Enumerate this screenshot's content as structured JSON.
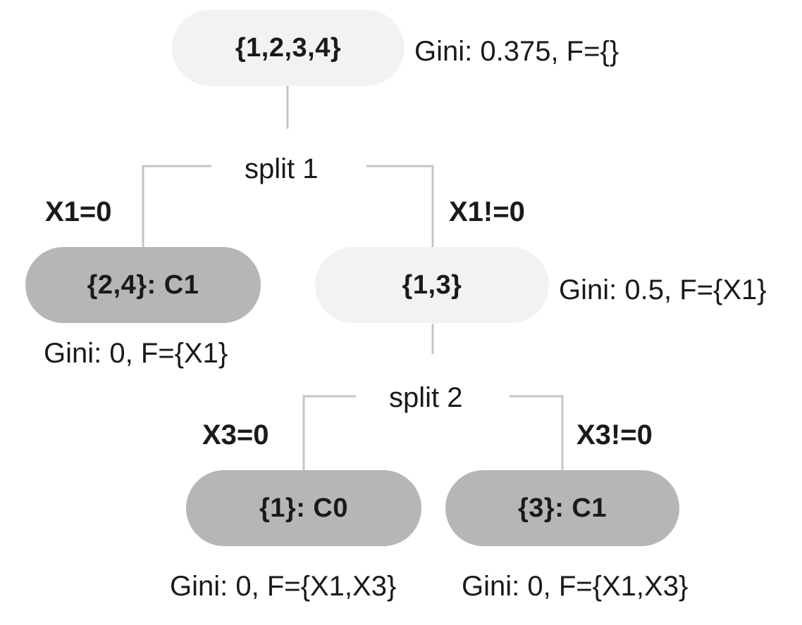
{
  "tree": {
    "root": {
      "label": "{1,2,3,4}",
      "gini": "Gini: 0.375, F={}"
    },
    "split1": {
      "label": "split 1",
      "left_branch": "X1=0",
      "right_branch": "X1!=0"
    },
    "left_leaf": {
      "label": "{2,4}: C1",
      "gini": "Gini: 0, F={X1}"
    },
    "inner_node": {
      "label": "{1,3}",
      "gini": "Gini: 0.5, F={X1}"
    },
    "split2": {
      "label": "split 2",
      "left_branch": "X3=0",
      "right_branch": "X3!=0"
    },
    "leaf_c0": {
      "label": "{1}: C0",
      "gini": "Gini: 0, F={X1,X3}"
    },
    "leaf_c1": {
      "label": "{3}: C1",
      "gini": "Gini: 0, F={X1,X3}"
    }
  },
  "colors": {
    "inner_node_fill": "#f2f2f2",
    "leaf_node_fill": "#b6b6b6",
    "connector_line": "#c4c4c4",
    "text": "#1a1a1a"
  }
}
